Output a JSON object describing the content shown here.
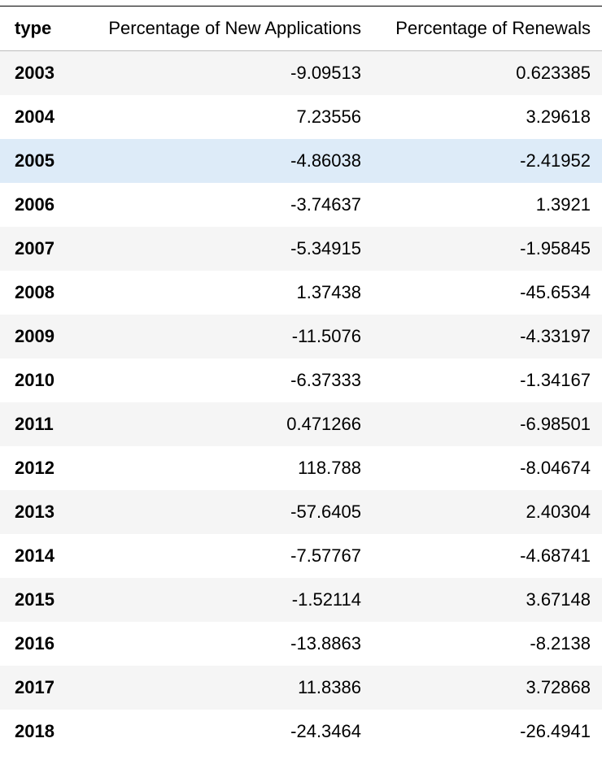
{
  "table": {
    "columns": [
      "type",
      "Percentage of New Applications",
      "Percentage of Renewals"
    ],
    "highlighted_row": 2,
    "rows": [
      {
        "year": "2003",
        "new": "-9.09513",
        "renewals": "0.623385"
      },
      {
        "year": "2004",
        "new": "7.23556",
        "renewals": "3.29618"
      },
      {
        "year": "2005",
        "new": "-4.86038",
        "renewals": "-2.41952"
      },
      {
        "year": "2006",
        "new": "-3.74637",
        "renewals": "1.3921"
      },
      {
        "year": "2007",
        "new": "-5.34915",
        "renewals": "-1.95845"
      },
      {
        "year": "2008",
        "new": "1.37438",
        "renewals": "-45.6534"
      },
      {
        "year": "2009",
        "new": "-11.5076",
        "renewals": "-4.33197"
      },
      {
        "year": "2010",
        "new": "-6.37333",
        "renewals": "-1.34167"
      },
      {
        "year": "2011",
        "new": "0.471266",
        "renewals": "-6.98501"
      },
      {
        "year": "2012",
        "new": "118.788",
        "renewals": "-8.04674"
      },
      {
        "year": "2013",
        "new": "-57.6405",
        "renewals": "2.40304"
      },
      {
        "year": "2014",
        "new": "-7.57767",
        "renewals": "-4.68741"
      },
      {
        "year": "2015",
        "new": "-1.52114",
        "renewals": "3.67148"
      },
      {
        "year": "2016",
        "new": "-13.8863",
        "renewals": "-8.2138"
      },
      {
        "year": "2017",
        "new": "11.8386",
        "renewals": "3.72868"
      },
      {
        "year": "2018",
        "new": "-24.3464",
        "renewals": "-26.4941"
      }
    ]
  },
  "colors": {
    "header_border": "#000000",
    "row_stripe": "#f5f5f5",
    "row_highlight": "#ddebf8"
  }
}
